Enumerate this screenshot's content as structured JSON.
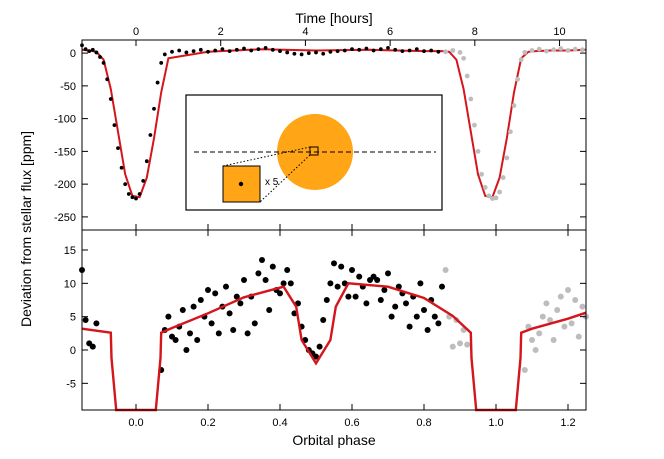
{
  "chart_data": [
    {
      "type": "line",
      "panel": "top",
      "xlabel_top": "Time [hours]",
      "ylabel": "Deviation from stellar flux [ppm]",
      "xlim": [
        -0.15,
        1.25
      ],
      "ylim": [
        -270,
        20
      ],
      "x_top_ticks": [
        "0",
        "2",
        "4",
        "6",
        "8",
        "10"
      ],
      "y_ticks": [
        "0",
        "-50",
        "-100",
        "-150",
        "-200",
        "-250"
      ],
      "model_color": "#d4161c",
      "series": [
        {
          "x": [
            -0.15,
            -0.13,
            -0.11,
            -0.09,
            -0.07,
            -0.05,
            -0.03,
            -0.01,
            0.01,
            0.03,
            0.05,
            0.07,
            0.09,
            0.2,
            0.35,
            0.5,
            0.65,
            0.8,
            0.85,
            0.87,
            0.89,
            0.91,
            0.93,
            0.95,
            0.97,
            0.99,
            1.01,
            1.03,
            1.05,
            1.07,
            1.09,
            1.11,
            1.15,
            1.2,
            1.25
          ],
          "y": [
            5,
            4,
            2,
            -10,
            -55,
            -120,
            -185,
            -218,
            -220,
            -190,
            -130,
            -60,
            -8,
            2,
            6,
            4,
            5,
            3,
            3,
            2,
            -10,
            -55,
            -120,
            -185,
            -218,
            -220,
            -190,
            -130,
            -60,
            -8,
            2,
            3,
            4,
            4,
            5
          ]
        }
      ],
      "points_dark": {
        "x": [
          -0.15,
          -0.14,
          -0.13,
          -0.12,
          -0.11,
          -0.1,
          -0.09,
          -0.08,
          -0.07,
          -0.06,
          -0.05,
          -0.04,
          -0.03,
          -0.02,
          -0.01,
          0.0,
          0.01,
          0.02,
          0.03,
          0.04,
          0.05,
          0.06,
          0.07,
          0.08,
          0.1,
          0.12,
          0.14,
          0.16,
          0.18,
          0.2,
          0.22,
          0.24,
          0.26,
          0.28,
          0.3,
          0.32,
          0.34,
          0.36,
          0.38,
          0.4,
          0.42,
          0.44,
          0.46,
          0.48,
          0.5,
          0.52,
          0.54,
          0.56,
          0.58,
          0.6,
          0.62,
          0.64,
          0.66,
          0.68,
          0.7,
          0.72,
          0.74,
          0.76,
          0.78,
          0.8,
          0.82,
          0.84
        ],
        "y": [
          12,
          6,
          3,
          5,
          1,
          -6,
          -15,
          -40,
          -70,
          -110,
          -145,
          -175,
          -200,
          -215,
          -220,
          -222,
          -215,
          -195,
          -165,
          -125,
          -85,
          -45,
          -15,
          -2,
          2,
          4,
          1,
          3,
          5,
          2,
          4,
          6,
          3,
          5,
          7,
          4,
          6,
          8,
          5,
          3,
          1,
          -1,
          -2,
          0,
          1,
          -1,
          2,
          3,
          4,
          6,
          5,
          7,
          4,
          6,
          8,
          5,
          3,
          4,
          6,
          3,
          4,
          2
        ]
      },
      "points_grey": {
        "x": [
          0.86,
          0.88,
          0.9,
          0.91,
          0.92,
          0.93,
          0.94,
          0.95,
          0.96,
          0.97,
          0.98,
          0.99,
          1.0,
          1.01,
          1.02,
          1.03,
          1.04,
          1.05,
          1.06,
          1.07,
          1.08,
          1.1,
          1.12,
          1.14,
          1.16,
          1.18,
          1.2,
          1.22,
          1.24
        ],
        "y": [
          2,
          4,
          1,
          -8,
          -35,
          -70,
          -110,
          -150,
          -185,
          -205,
          -218,
          -222,
          -221,
          -212,
          -190,
          -160,
          -120,
          -80,
          -40,
          -10,
          1,
          4,
          6,
          3,
          5,
          7,
          4,
          6,
          5
        ]
      },
      "inset": {
        "zoom_label": "x 5",
        "star_color": "#ffa516",
        "box_fill": "#ffa516"
      }
    },
    {
      "type": "line",
      "panel": "bottom",
      "xlabel": "Orbital phase",
      "xlim": [
        -0.15,
        1.25
      ],
      "ylim": [
        -9,
        18
      ],
      "x_ticks": [
        "0.0",
        "0.2",
        "0.4",
        "0.6",
        "0.8",
        "1.0",
        "1.2"
      ],
      "y_ticks": [
        "15",
        "10",
        "5",
        "0",
        "-5"
      ],
      "model": {
        "x": [
          -0.15,
          -0.07,
          -0.068,
          -0.055,
          -0.055,
          0.055,
          0.055,
          0.068,
          0.07,
          0.1,
          0.2,
          0.3,
          0.41,
          0.445,
          0.46,
          0.5,
          0.54,
          0.555,
          0.59,
          0.7,
          0.8,
          0.88,
          0.93,
          0.932,
          0.945,
          0.945,
          1.055,
          1.055,
          1.068,
          1.07,
          1.1,
          1.2,
          1.25
        ],
        "y": [
          3.2,
          2.6,
          -1.2,
          -9,
          -9,
          -9,
          -9,
          -1.2,
          2.6,
          3.3,
          5.5,
          7.9,
          9.5,
          6.5,
          1.5,
          -2,
          1.5,
          6.5,
          10,
          9.5,
          7.8,
          5.1,
          2.6,
          -1.2,
          -9,
          -9,
          -9,
          -9,
          -1.2,
          2.6,
          3.2,
          4.7,
          5.6
        ]
      },
      "points_dark": {
        "x": [
          -0.15,
          -0.14,
          -0.13,
          -0.12,
          -0.11,
          0.07,
          0.08,
          0.09,
          0.1,
          0.11,
          0.12,
          0.13,
          0.14,
          0.15,
          0.16,
          0.17,
          0.18,
          0.19,
          0.2,
          0.21,
          0.22,
          0.23,
          0.24,
          0.25,
          0.26,
          0.27,
          0.28,
          0.29,
          0.3,
          0.31,
          0.32,
          0.33,
          0.34,
          0.35,
          0.36,
          0.37,
          0.38,
          0.39,
          0.4,
          0.41,
          0.42,
          0.43,
          0.44,
          0.45,
          0.46,
          0.47,
          0.48,
          0.49,
          0.5,
          0.51,
          0.52,
          0.53,
          0.54,
          0.55,
          0.56,
          0.57,
          0.58,
          0.59,
          0.6,
          0.61,
          0.62,
          0.63,
          0.64,
          0.65,
          0.66,
          0.67,
          0.68,
          0.69,
          0.7,
          0.71,
          0.72,
          0.73,
          0.74,
          0.75,
          0.76,
          0.77,
          0.78,
          0.79,
          0.8,
          0.81,
          0.82,
          0.83,
          0.84,
          0.85
        ],
        "y": [
          12,
          4.5,
          1,
          0.5,
          4,
          -3,
          3,
          5,
          2,
          1.5,
          3.5,
          6,
          0,
          2.5,
          6.5,
          1.5,
          7.5,
          5,
          9,
          4,
          8.5,
          2.5,
          6.5,
          9.5,
          5.5,
          3,
          8,
          7,
          10.5,
          2.5,
          8,
          4,
          11.5,
          13.5,
          10.5,
          6,
          12.5,
          9,
          8.5,
          10,
          12,
          10,
          5.5,
          7,
          3.5,
          1.5,
          0,
          -0.5,
          -1,
          0.5,
          4.5,
          7.5,
          10,
          13,
          9.5,
          12.5,
          10,
          8,
          12,
          8,
          11,
          9.5,
          7,
          10.5,
          11,
          10.5,
          7.5,
          9,
          11.5,
          5,
          6.5,
          9.5,
          8.5,
          7,
          3.5,
          8,
          5,
          10,
          6,
          3,
          7.5,
          5,
          4,
          9.5
        ]
      },
      "points_grey": {
        "x": [
          0.86,
          0.87,
          0.88,
          0.89,
          0.9,
          0.91,
          0.92,
          1.08,
          1.09,
          1.1,
          1.11,
          1.12,
          1.13,
          1.14,
          1.15,
          1.16,
          1.17,
          1.18,
          1.19,
          1.2,
          1.21,
          1.22,
          1.23,
          1.24,
          1.25
        ],
        "y": [
          12,
          5,
          0.5,
          4.5,
          1,
          3,
          0.8,
          -3,
          3.5,
          1.5,
          0,
          2.5,
          5,
          7,
          4.5,
          1.5,
          6,
          8,
          3.5,
          9,
          4,
          7.5,
          2,
          6.5,
          5
        ]
      }
    }
  ]
}
